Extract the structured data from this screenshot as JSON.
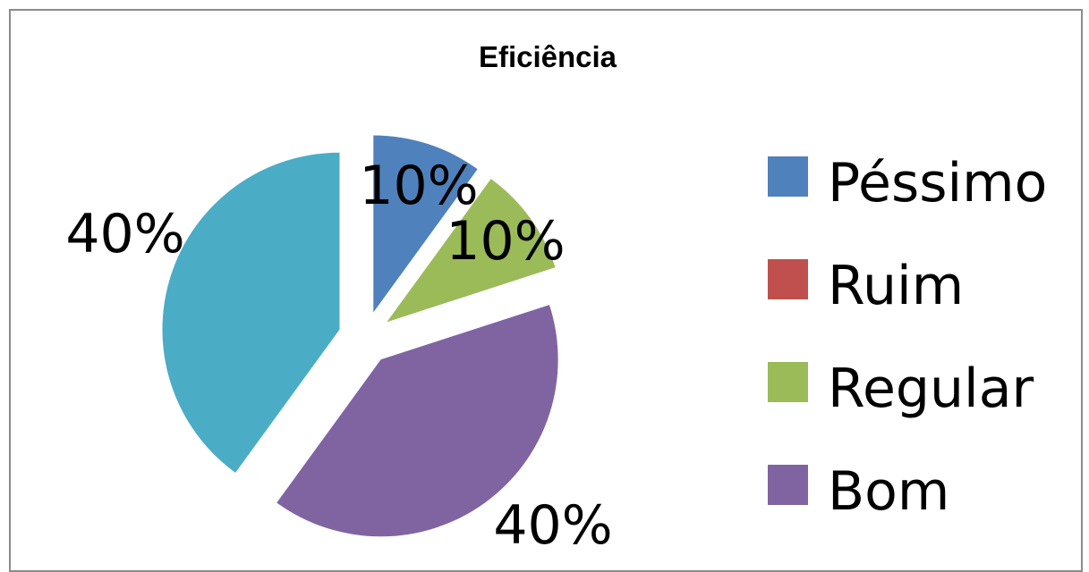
{
  "chart_data": {
    "type": "pie",
    "title": "Eficiência",
    "categories": [
      "Péssimo",
      "Ruim",
      "Regular",
      "Bom",
      ""
    ],
    "values": [
      10,
      0,
      10,
      40,
      40
    ],
    "data_labels": [
      "10%",
      "",
      "10%",
      "40%",
      "40%"
    ],
    "colors": [
      "#4f81bd",
      "#c0504d",
      "#9bbb59",
      "#8064a2",
      "#4bacc6"
    ],
    "legend": {
      "position": "right",
      "entries": [
        {
          "label": "Péssimo",
          "color": "#4f81bd"
        },
        {
          "label": "Ruim",
          "color": "#c0504d"
        },
        {
          "label": "Regular",
          "color": "#9bbb59"
        },
        {
          "label": "Bom",
          "color": "#8064a2"
        }
      ]
    },
    "exploded": true
  }
}
